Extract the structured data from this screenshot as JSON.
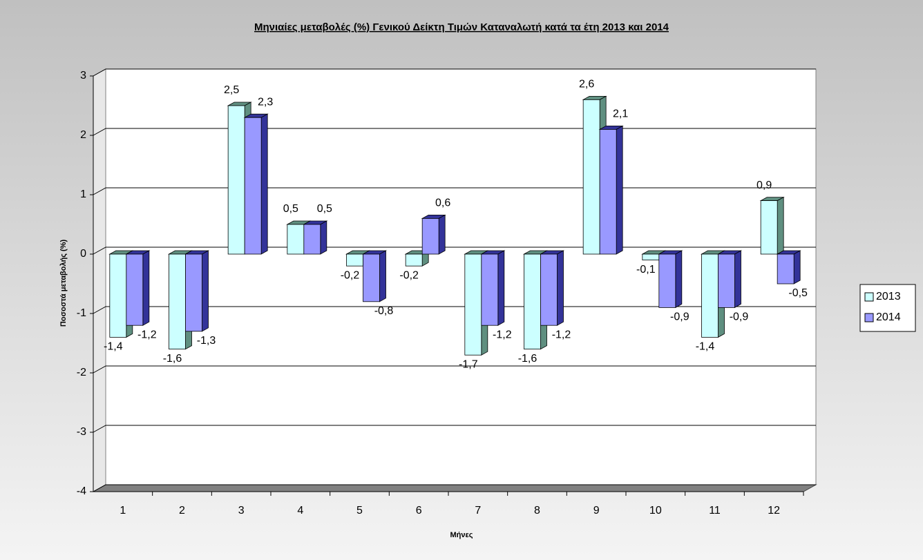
{
  "chart_data": {
    "type": "bar",
    "title": "Μηνιαίες μεταβολές (%) Γενικού Δείκτη Τιμών Καταναλωτή κατά τα έτη 2013 και 2014",
    "x_label": "Μήνες",
    "y_label": "Ποσοστά μεταβολής (%)",
    "categories": [
      "1",
      "2",
      "3",
      "4",
      "5",
      "6",
      "7",
      "8",
      "9",
      "10",
      "11",
      "12"
    ],
    "series": [
      {
        "name": "2013",
        "color": "#ccffff",
        "side_color": "#5f8f80",
        "values": [
          -1.4,
          -1.6,
          2.5,
          0.5,
          -0.2,
          -0.2,
          -1.7,
          -1.6,
          2.6,
          -0.1,
          -1.4,
          0.9
        ],
        "value_labels": [
          "-1,4",
          "-1,6",
          "2,5",
          "0,5",
          "-0,2",
          "-0,2",
          "-1,7",
          "-1,6",
          "2,6",
          "-0,1",
          "-1,4",
          "0,9"
        ]
      },
      {
        "name": "2014",
        "color": "#9999ff",
        "side_color": "#333399",
        "values": [
          -1.2,
          -1.3,
          2.3,
          0.5,
          -0.8,
          0.6,
          -1.2,
          -1.2,
          2.1,
          -0.9,
          -0.9,
          -0.5
        ],
        "value_labels": [
          "-1,2",
          "-1,3",
          "2,3",
          "0,5",
          "-0,8",
          "0,6",
          "-1,2",
          "-1,2",
          "2,1",
          "-0,9",
          "-0,9",
          "-0,5"
        ]
      }
    ],
    "ylim": [
      -4,
      3
    ],
    "yticks": [
      -4,
      -3,
      -2,
      -1,
      0,
      1,
      2,
      3
    ],
    "grid": true,
    "legend": "right"
  }
}
